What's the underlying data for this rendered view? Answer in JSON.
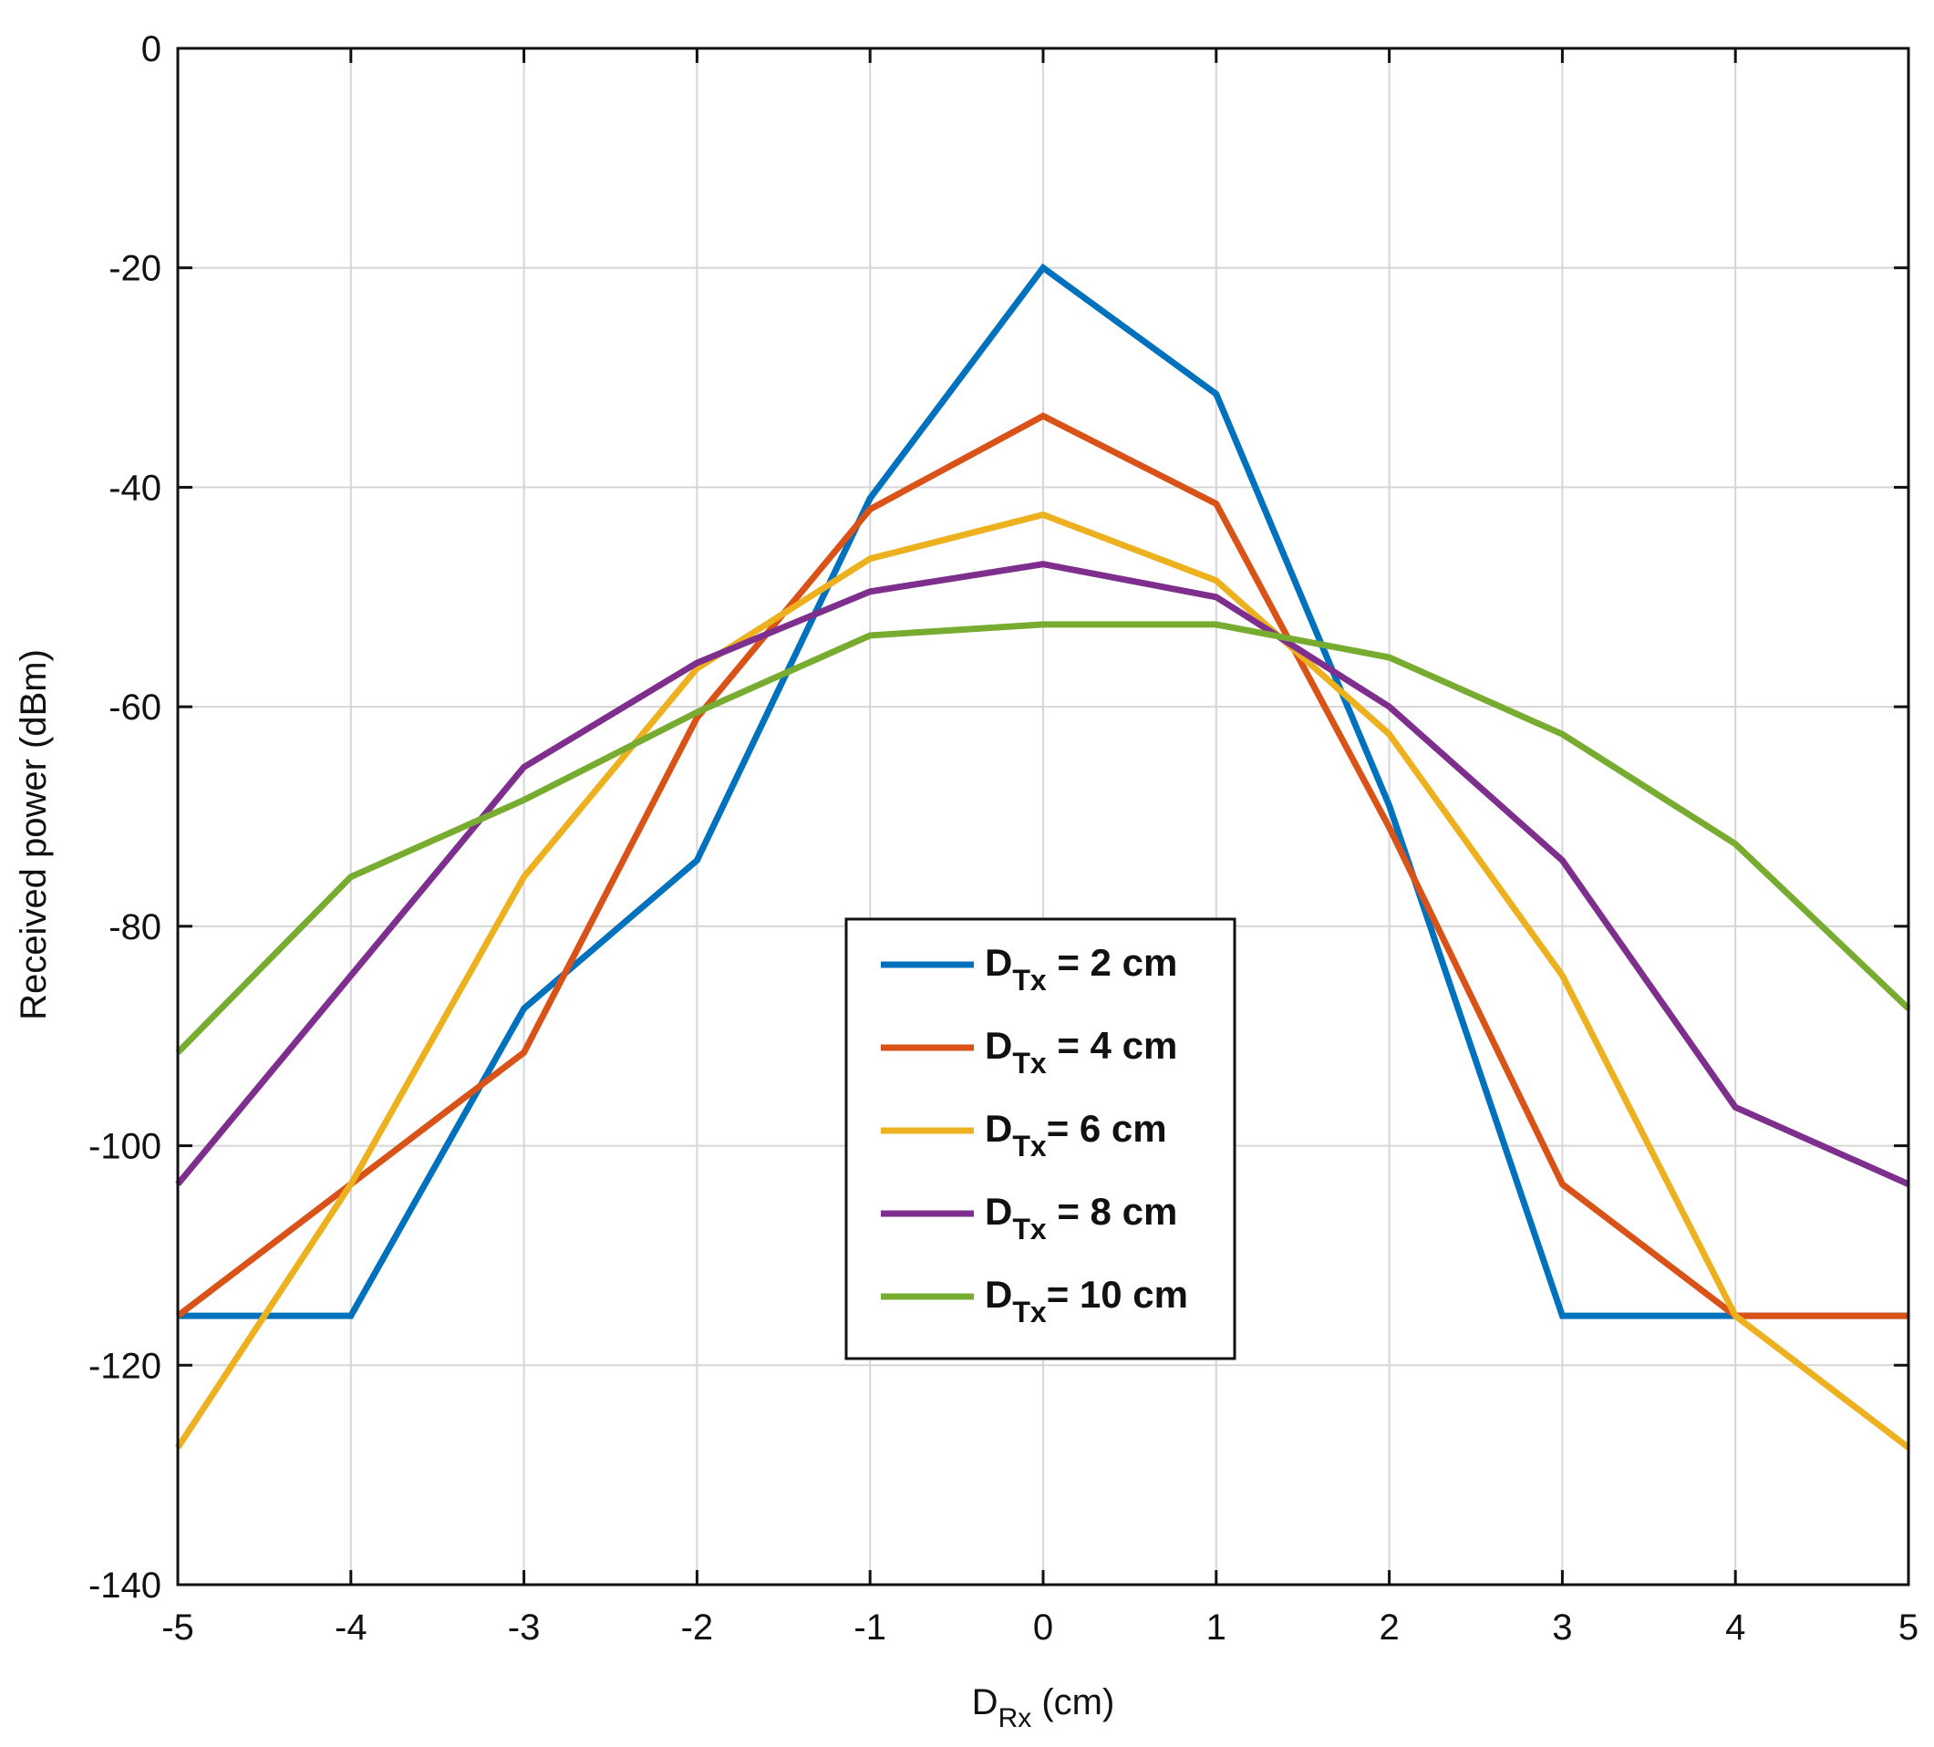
{
  "chart_data": {
    "type": "line",
    "title": "",
    "xlabel": "D",
    "xlabel_sub": "Rx",
    "xlabel_unit": " (cm)",
    "ylabel": "Received power (dBm)",
    "xlim": [
      -5,
      5
    ],
    "ylim": [
      -140,
      0
    ],
    "xticks": [
      -5,
      -4,
      -3,
      -2,
      -1,
      0,
      1,
      2,
      3,
      4,
      5
    ],
    "yticks": [
      0,
      -20,
      -40,
      -60,
      -80,
      -100,
      -120,
      -140
    ],
    "grid": true,
    "legend_position": "center",
    "x": [
      -5,
      -4,
      -3,
      -2,
      -1,
      0,
      1,
      2,
      3,
      4,
      5
    ],
    "series": [
      {
        "name_main": "D",
        "name_sub": "Tx",
        "name_rest": " = 2 cm",
        "color": "#0072BD",
        "values": [
          -115.5,
          -115.5,
          -87.5,
          -74,
          -41,
          -20,
          -31.5,
          -69,
          -115.5,
          -115.5,
          -115.5
        ]
      },
      {
        "name_main": "D",
        "name_sub": "Tx",
        "name_rest": " = 4 cm",
        "color": "#D95319",
        "values": [
          -115.5,
          -103.5,
          -91.5,
          -61,
          -42,
          -33.5,
          -41.5,
          -71,
          -103.5,
          -115.5,
          -115.5
        ]
      },
      {
        "name_main": "D",
        "name_sub": "Tx",
        "name_rest": "= 6 cm",
        "color": "#EDB120",
        "values": [
          -127.5,
          -103.5,
          -75.5,
          -56.5,
          -46.5,
          -42.5,
          -48.5,
          -62.5,
          -84.5,
          -115.5,
          -127.5
        ]
      },
      {
        "name_main": "D",
        "name_sub": "Tx",
        "name_rest": " = 8 cm",
        "color": "#7E2F8E",
        "values": [
          -103.5,
          -84.5,
          -65.5,
          -56,
          -49.5,
          -47,
          -50,
          -60,
          -74,
          -96.5,
          -103.5
        ]
      },
      {
        "name_main": "D",
        "name_sub": "Tx",
        "name_rest": "= 10 cm",
        "color": "#77AC30",
        "values": [
          -91.5,
          -75.5,
          -68.5,
          -60.5,
          -53.5,
          -52.5,
          -52.5,
          -55.5,
          -62.5,
          -72.5,
          -87.5
        ]
      }
    ]
  }
}
